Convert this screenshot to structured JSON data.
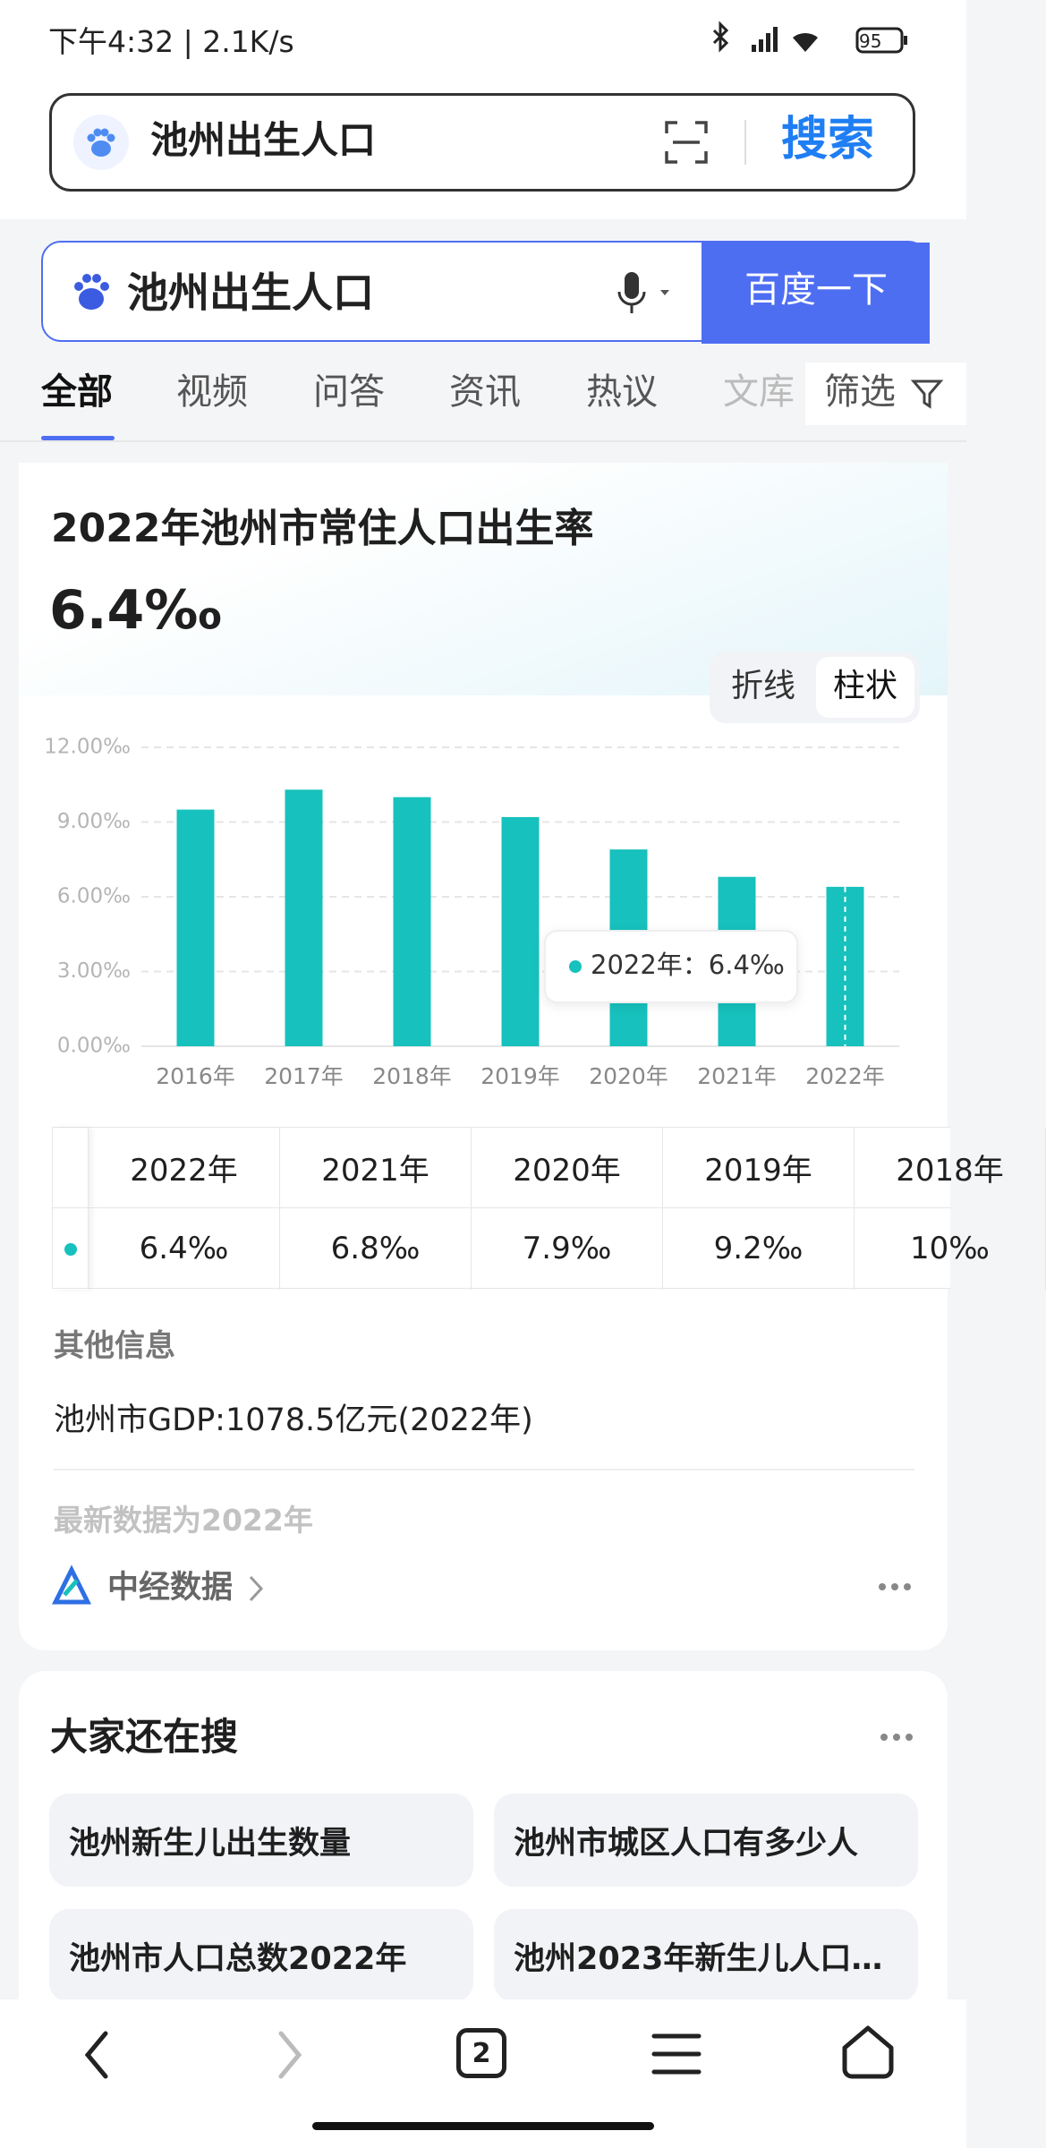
{
  "status_bar": {
    "time": "下午4:32 | 2.1K/s",
    "battery": "95"
  },
  "top_search": {
    "query": "池州出生人口",
    "button": "搜索"
  },
  "baidu_search": {
    "query": "池州出生人口",
    "button": "百度一下"
  },
  "tabs": [
    "全部",
    "视频",
    "问答",
    "资讯",
    "热议",
    "文库",
    "筛选"
  ],
  "chart_data": {
    "type": "bar",
    "title": "2022年池州市常住人口出生率",
    "subtitle": "6.4‰",
    "toggle": [
      "折线",
      "柱状"
    ],
    "categories": [
      "2016年",
      "2017年",
      "2018年",
      "2019年",
      "2020年",
      "2021年",
      "2022年"
    ],
    "values": [
      9.5,
      10.3,
      10.0,
      9.2,
      7.9,
      6.8,
      6.4
    ],
    "color": "#17c1bd",
    "ylim": [
      0,
      12
    ],
    "yticks": [
      {
        "value": 0,
        "label": "0.00‰"
      },
      {
        "value": 3,
        "label": "3.00‰"
      },
      {
        "value": 6,
        "label": "6.00‰"
      },
      {
        "value": 9,
        "label": "9.00‰"
      },
      {
        "value": 12,
        "label": "12.00‰"
      }
    ],
    "grid": true,
    "annotations": [
      "2022年：6.4‰"
    ]
  },
  "table": {
    "header": [
      "2022年",
      "2021年",
      "2020年",
      "2019年",
      "2018年"
    ],
    "row": [
      "6.4‰",
      "6.8‰",
      "7.9‰",
      "9.2‰",
      "10‰"
    ]
  },
  "other_info": {
    "label": "其他信息",
    "gdp": "池州市GDP:1078.5亿元(2022年)",
    "latest": "最新数据为2022年",
    "source": "中经数据"
  },
  "related": {
    "title": "大家还在搜",
    "items": [
      "池州新生儿出生数量",
      "池州市城区人口有多少人",
      "池州市人口总数2022年",
      "池州2023年新生儿人口…"
    ]
  },
  "nav": {
    "tab_count": "2"
  }
}
